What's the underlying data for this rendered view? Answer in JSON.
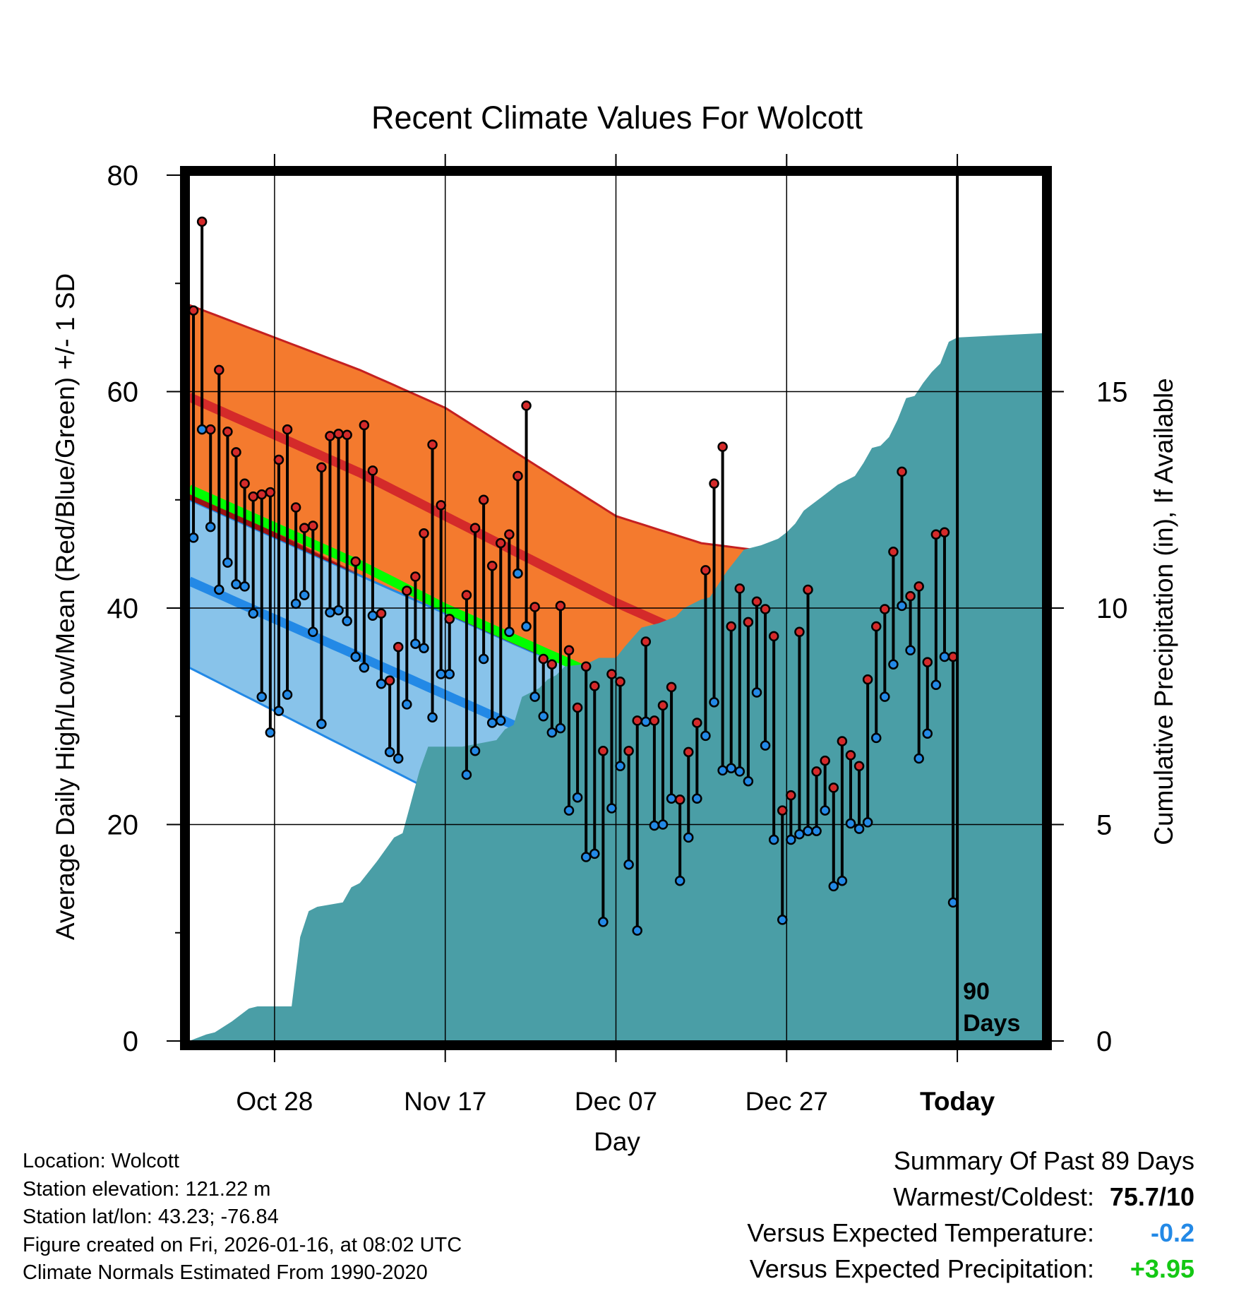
{
  "chart_data": {
    "type": "line",
    "title": "Recent Climate Values For Wolcott",
    "xlabel": "Day",
    "ylabel": "Average Daily High/Low/Mean (Red/Blue/Green) +/- 1 SD",
    "y2label": "Cumulative Precipitation (in), If Available",
    "xlim_day": [
      0,
      100
    ],
    "ylim": [
      0,
      80
    ],
    "y2lim": [
      0,
      20
    ],
    "yticks": [
      "0",
      "20",
      "40",
      "60",
      "80"
    ],
    "y2ticks": [
      "0",
      "5",
      "10",
      "15"
    ],
    "xticks": [
      {
        "day": 10,
        "label": "Oct 28"
      },
      {
        "day": 30,
        "label": "Nov 17"
      },
      {
        "day": 50,
        "label": "Dec 07"
      },
      {
        "day": 70,
        "label": "Dec 27"
      },
      {
        "day": 90,
        "label": "Today"
      }
    ],
    "today_day": 90,
    "today_label_line1": "90",
    "today_label_line2": "Days",
    "colors": {
      "high_band": "#f47a2e",
      "high_mean": "#d42a2a",
      "low_band": "#88c3ea",
      "low_mean": "#2389e6",
      "overlap": "#9b1213",
      "daily_mean": "#00ff00",
      "precip": "#4a9ea6",
      "high_dot": "#d42a2a",
      "low_dot": "#2389e6"
    },
    "normal_high": {
      "days": [
        0,
        10,
        20,
        30,
        40,
        50,
        60,
        70,
        80,
        90,
        100
      ],
      "mean": [
        59.5,
        56.0,
        52.5,
        48.5,
        44.5,
        40.5,
        37.0,
        34.5,
        32.5,
        31.5,
        31.0
      ],
      "upper": [
        68.0,
        65.0,
        62.0,
        58.5,
        53.5,
        48.5,
        46.0,
        45.0,
        44.0,
        43.3,
        42.5
      ],
      "lower": [
        51.0,
        47.0,
        43.0,
        39.5,
        36.5,
        33.0,
        30.5,
        28.5,
        27.5,
        26.5,
        27.0
      ]
    },
    "normal_low": {
      "days": [
        0,
        10,
        20,
        30,
        40,
        50,
        60,
        70,
        80,
        90,
        100
      ],
      "mean": [
        42.5,
        39.0,
        35.5,
        32.0,
        28.5,
        25.5,
        22.0,
        19.5,
        17.5,
        16.5,
        16.0
      ],
      "upper": [
        50.0,
        46.5,
        43.0,
        39.5,
        36.0,
        33.0,
        30.0,
        27.0,
        25.0,
        24.0,
        23.5
      ],
      "lower": [
        34.5,
        30.5,
        26.5,
        22.5,
        18.5,
        14.0,
        10.5,
        8.5,
        6.5,
        5.5,
        5.0
      ]
    },
    "normal_daily_mean": {
      "days": [
        0,
        10,
        20,
        30,
        40,
        50,
        60,
        70,
        80,
        90,
        100
      ],
      "values": [
        51.0,
        47.5,
        44.0,
        40.0,
        36.5,
        33.0,
        29.5,
        27.0,
        25.0,
        24.0,
        23.5
      ]
    },
    "precip_cumulative": {
      "days": [
        0,
        2,
        3,
        5,
        7,
        8,
        10,
        11,
        12,
        13,
        14,
        15,
        18,
        19,
        20,
        22,
        24,
        25,
        27,
        28,
        29,
        30,
        32,
        36,
        37,
        38,
        39,
        41,
        42,
        43,
        44,
        46,
        47,
        48,
        50,
        51,
        53,
        55,
        57,
        58,
        60,
        61,
        63,
        65,
        67,
        69,
        70,
        71,
        72,
        73,
        74,
        75,
        76,
        77,
        78,
        79,
        80,
        81,
        82,
        83,
        84,
        85,
        86,
        87,
        88,
        89,
        90,
        100
      ],
      "values": [
        0.0,
        0.15,
        0.2,
        0.45,
        0.75,
        0.8,
        0.8,
        0.8,
        0.8,
        2.4,
        3.0,
        3.1,
        3.2,
        3.55,
        3.65,
        4.15,
        4.7,
        4.8,
        6.25,
        6.8,
        6.8,
        6.8,
        6.8,
        6.95,
        7.2,
        7.3,
        7.95,
        8.15,
        8.35,
        8.45,
        8.65,
        8.7,
        8.75,
        8.85,
        8.85,
        9.1,
        9.55,
        9.65,
        9.8,
        10.0,
        10.2,
        10.25,
        10.85,
        11.35,
        11.45,
        11.6,
        11.75,
        11.95,
        12.25,
        12.4,
        12.55,
        12.7,
        12.85,
        12.95,
        13.05,
        13.35,
        13.7,
        13.75,
        13.95,
        14.35,
        14.85,
        14.9,
        15.2,
        15.45,
        15.65,
        16.15,
        16.25,
        16.35
      ]
    },
    "daily_observations": [
      {
        "day": 0,
        "high": 67.5,
        "low": 46.5
      },
      {
        "day": 1,
        "high": 75.7,
        "low": 56.5
      },
      {
        "day": 2,
        "high": 56.5,
        "low": 47.5
      },
      {
        "day": 3,
        "high": 62.0,
        "low": 41.7
      },
      {
        "day": 4,
        "high": 56.3,
        "low": 44.2
      },
      {
        "day": 5,
        "high": 54.4,
        "low": 42.2
      },
      {
        "day": 6,
        "high": 51.5,
        "low": 42.0
      },
      {
        "day": 7,
        "high": 50.3,
        "low": 39.5
      },
      {
        "day": 8,
        "high": 50.5,
        "low": 31.8
      },
      {
        "day": 9,
        "high": 50.7,
        "low": 28.5
      },
      {
        "day": 10,
        "high": 53.7,
        "low": 30.5
      },
      {
        "day": 11,
        "high": 56.5,
        "low": 32.0
      },
      {
        "day": 12,
        "high": 49.3,
        "low": 40.4
      },
      {
        "day": 13,
        "high": 47.4,
        "low": 41.2
      },
      {
        "day": 14,
        "high": 47.6,
        "low": 37.8
      },
      {
        "day": 15,
        "high": 53.0,
        "low": 29.3
      },
      {
        "day": 16,
        "high": 55.9,
        "low": 39.6
      },
      {
        "day": 17,
        "high": 56.1,
        "low": 39.8
      },
      {
        "day": 18,
        "high": 56.0,
        "low": 38.8
      },
      {
        "day": 19,
        "high": 44.3,
        "low": 35.5
      },
      {
        "day": 20,
        "high": 56.9,
        "low": 34.5
      },
      {
        "day": 21,
        "high": 52.7,
        "low": 39.3
      },
      {
        "day": 22,
        "high": 39.5,
        "low": 33.0
      },
      {
        "day": 23,
        "high": 33.3,
        "low": 26.7
      },
      {
        "day": 24,
        "high": 36.4,
        "low": 26.1
      },
      {
        "day": 25,
        "high": 41.6,
        "low": 31.1
      },
      {
        "day": 26,
        "high": 42.9,
        "low": 36.7
      },
      {
        "day": 27,
        "high": 46.9,
        "low": 36.3
      },
      {
        "day": 28,
        "high": 55.1,
        "low": 29.9
      },
      {
        "day": 29,
        "high": 49.5,
        "low": 33.9
      },
      {
        "day": 30,
        "high": 39.0,
        "low": 33.9
      },
      {
        "day": 32,
        "high": 41.2,
        "low": 24.6
      },
      {
        "day": 33,
        "high": 47.4,
        "low": 26.8
      },
      {
        "day": 34,
        "high": 50.0,
        "low": 35.3
      },
      {
        "day": 35,
        "high": 43.9,
        "low": 29.4
      },
      {
        "day": 36,
        "high": 46.0,
        "low": 29.6
      },
      {
        "day": 37,
        "high": 46.8,
        "low": 37.8
      },
      {
        "day": 38,
        "high": 52.2,
        "low": 43.2
      },
      {
        "day": 39,
        "high": 58.7,
        "low": 38.3
      },
      {
        "day": 40,
        "high": 40.1,
        "low": 31.8
      },
      {
        "day": 41,
        "high": 35.3,
        "low": 30.0
      },
      {
        "day": 42,
        "high": 34.8,
        "low": 28.5
      },
      {
        "day": 43,
        "high": 40.2,
        "low": 28.9
      },
      {
        "day": 44,
        "high": 36.1,
        "low": 21.3
      },
      {
        "day": 45,
        "high": 30.8,
        "low": 22.5
      },
      {
        "day": 46,
        "high": 34.6,
        "low": 17.0
      },
      {
        "day": 47,
        "high": 32.8,
        "low": 17.3
      },
      {
        "day": 48,
        "high": 26.8,
        "low": 11.0
      },
      {
        "day": 49,
        "high": 33.9,
        "low": 21.5
      },
      {
        "day": 50,
        "high": 33.2,
        "low": 25.4
      },
      {
        "day": 51,
        "high": 26.8,
        "low": 16.3
      },
      {
        "day": 52,
        "high": 29.6,
        "low": 10.2
      },
      {
        "day": 53,
        "high": 36.9,
        "low": 29.5
      },
      {
        "day": 54,
        "high": 29.6,
        "low": 19.9
      },
      {
        "day": 55,
        "high": 31.0,
        "low": 20.0
      },
      {
        "day": 56,
        "high": 32.7,
        "low": 22.4
      },
      {
        "day": 57,
        "high": 22.3,
        "low": 14.8
      },
      {
        "day": 58,
        "high": 26.7,
        "low": 18.8
      },
      {
        "day": 59,
        "high": 29.4,
        "low": 22.4
      },
      {
        "day": 60,
        "high": 43.5,
        "low": 28.2
      },
      {
        "day": 61,
        "high": 51.5,
        "low": 31.3
      },
      {
        "day": 62,
        "high": 54.9,
        "low": 25.0
      },
      {
        "day": 63,
        "high": 38.3,
        "low": 25.2
      },
      {
        "day": 64,
        "high": 41.8,
        "low": 24.9
      },
      {
        "day": 65,
        "high": 38.7,
        "low": 24.0
      },
      {
        "day": 66,
        "high": 40.6,
        "low": 32.2
      },
      {
        "day": 67,
        "high": 39.9,
        "low": 27.3
      },
      {
        "day": 68,
        "high": 37.4,
        "low": 18.6
      },
      {
        "day": 69,
        "high": 21.3,
        "low": 11.2
      },
      {
        "day": 70,
        "high": 22.7,
        "low": 18.6
      },
      {
        "day": 71,
        "high": 37.8,
        "low": 19.1
      },
      {
        "day": 72,
        "high": 41.7,
        "low": 19.4
      },
      {
        "day": 73,
        "high": 24.9,
        "low": 19.4
      },
      {
        "day": 74,
        "high": 25.9,
        "low": 21.3
      },
      {
        "day": 75,
        "high": 23.4,
        "low": 14.3
      },
      {
        "day": 76,
        "high": 27.7,
        "low": 14.8
      },
      {
        "day": 77,
        "high": 26.4,
        "low": 20.1
      },
      {
        "day": 78,
        "high": 25.4,
        "low": 19.6
      },
      {
        "day": 79,
        "high": 33.4,
        "low": 20.2
      },
      {
        "day": 80,
        "high": 38.3,
        "low": 28.0
      },
      {
        "day": 81,
        "high": 39.9,
        "low": 31.8
      },
      {
        "day": 82,
        "high": 45.2,
        "low": 34.8
      },
      {
        "day": 83,
        "high": 52.6,
        "low": 40.2
      },
      {
        "day": 84,
        "high": 41.1,
        "low": 36.1
      },
      {
        "day": 85,
        "high": 42.0,
        "low": 26.1
      },
      {
        "day": 86,
        "high": 35.0,
        "low": 28.4
      },
      {
        "day": 87,
        "high": 46.8,
        "low": 32.9
      },
      {
        "day": 88,
        "high": 47.0,
        "low": 35.5
      },
      {
        "day": 89,
        "high": 35.5,
        "low": 12.8
      }
    ]
  },
  "footer": {
    "location": "Location: Wolcott",
    "elevation": "Station elevation: 121.22 m",
    "latlon": "Station lat/lon: 43.23; -76.84",
    "created": "Figure created on Fri, 2026-01-16, at 08:02 UTC",
    "normals": "Climate Normals Estimated From 1990-2020"
  },
  "summary": {
    "title": "Summary Of Past 89 Days",
    "warmest_coldest_label": "Warmest/Coldest:",
    "warmest_coldest_value": "75.7/10",
    "temp_label": "Versus Expected Temperature:",
    "temp_value": "-0.2",
    "temp_color": "#2389e6",
    "precip_label": "Versus Expected Precipitation:",
    "precip_value": "+3.95",
    "precip_color": "#14c814"
  }
}
